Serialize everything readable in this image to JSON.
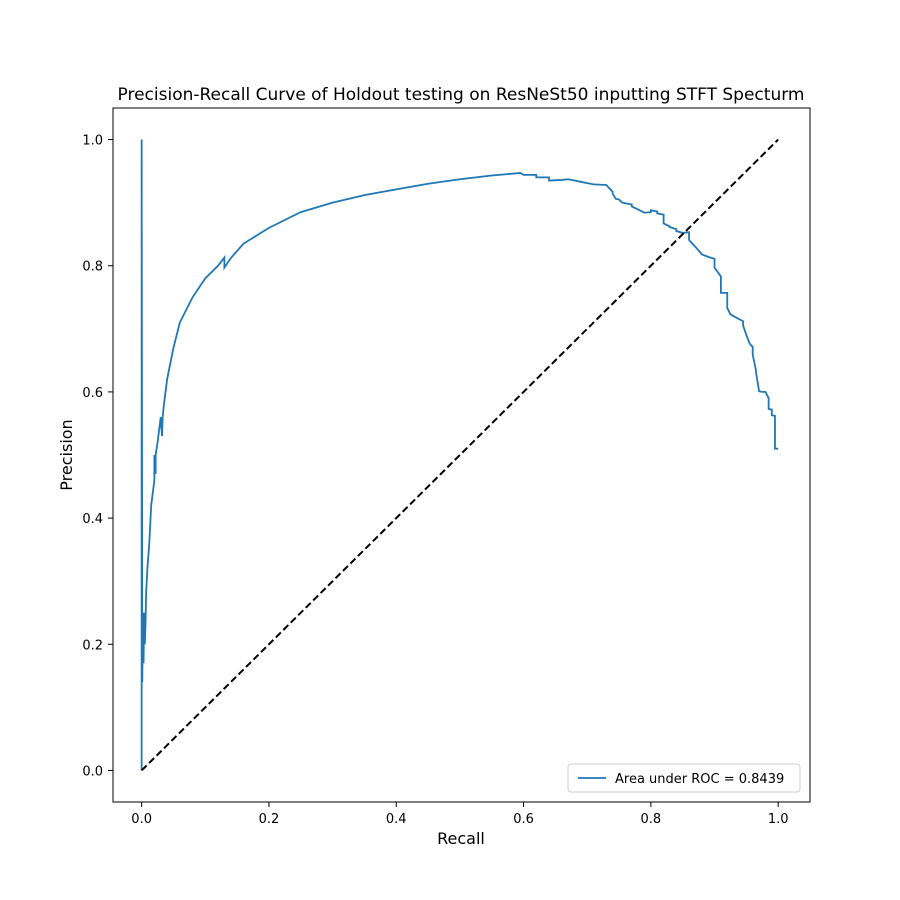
{
  "chart_data": {
    "type": "line",
    "title": "Precision-Recall Curve of Holdout testing on ResNeSt50 inputting STFT Specturm",
    "xlabel": "Recall",
    "ylabel": "Precision",
    "xlim": [
      -0.045,
      1.05
    ],
    "ylim": [
      -0.05,
      1.05
    ],
    "xticks": [
      0.0,
      0.2,
      0.4,
      0.6,
      0.8,
      1.0
    ],
    "xtick_labels": [
      "0.0",
      "0.2",
      "0.4",
      "0.6",
      "0.8",
      "1.0"
    ],
    "yticks": [
      0.0,
      0.2,
      0.4,
      0.6,
      0.8,
      1.0
    ],
    "ytick_labels": [
      "0.0",
      "0.2",
      "0.4",
      "0.6",
      "0.8",
      "1.0"
    ],
    "grid": false,
    "legend_position": "lower-right",
    "series": [
      {
        "name": "Area under ROC = 0.8439",
        "color": "#1f77b4",
        "style": "solid",
        "x": [
          0.0,
          0.0,
          0.001,
          0.002,
          0.003,
          0.004,
          0.005,
          0.006,
          0.007,
          0.009,
          0.012,
          0.015,
          0.02,
          0.02,
          0.022,
          0.022,
          0.025,
          0.03,
          0.032,
          0.033,
          0.035,
          0.04,
          0.05,
          0.06,
          0.08,
          0.1,
          0.12,
          0.13,
          0.13,
          0.14,
          0.16,
          0.2,
          0.25,
          0.3,
          0.35,
          0.4,
          0.45,
          0.5,
          0.55,
          0.595,
          0.6,
          0.62,
          0.62,
          0.64,
          0.64,
          0.66,
          0.67,
          0.68,
          0.69,
          0.7,
          0.71,
          0.73,
          0.74,
          0.74,
          0.745,
          0.75,
          0.755,
          0.76,
          0.77,
          0.77,
          0.79,
          0.8,
          0.8,
          0.81,
          0.81,
          0.82,
          0.82,
          0.83,
          0.83,
          0.84,
          0.84,
          0.85,
          0.86,
          0.86,
          0.865,
          0.87,
          0.875,
          0.88,
          0.89,
          0.9,
          0.9,
          0.91,
          0.91,
          0.92,
          0.92,
          0.925,
          0.93,
          0.945,
          0.945,
          0.95,
          0.955,
          0.96,
          0.96,
          0.965,
          0.965,
          0.97,
          0.975,
          0.98,
          0.985,
          0.985,
          0.99,
          0.99,
          0.995,
          0.995,
          1.0
        ],
        "y": [
          0.0,
          1.0,
          0.14,
          0.25,
          0.17,
          0.25,
          0.2,
          0.23,
          0.28,
          0.32,
          0.36,
          0.42,
          0.46,
          0.5,
          0.47,
          0.5,
          0.52,
          0.56,
          0.53,
          0.56,
          0.58,
          0.62,
          0.67,
          0.71,
          0.75,
          0.78,
          0.8,
          0.813,
          0.797,
          0.812,
          0.835,
          0.86,
          0.885,
          0.9,
          0.912,
          0.921,
          0.93,
          0.937,
          0.943,
          0.947,
          0.944,
          0.944,
          0.94,
          0.94,
          0.935,
          0.936,
          0.937,
          0.935,
          0.933,
          0.931,
          0.929,
          0.928,
          0.917,
          0.914,
          0.906,
          0.905,
          0.9,
          0.899,
          0.897,
          0.894,
          0.884,
          0.885,
          0.888,
          0.886,
          0.883,
          0.881,
          0.867,
          0.862,
          0.861,
          0.858,
          0.855,
          0.852,
          0.853,
          0.841,
          0.835,
          0.83,
          0.824,
          0.818,
          0.814,
          0.811,
          0.797,
          0.783,
          0.757,
          0.757,
          0.733,
          0.723,
          0.72,
          0.712,
          0.705,
          0.69,
          0.677,
          0.671,
          0.659,
          0.635,
          0.632,
          0.601,
          0.6,
          0.6,
          0.59,
          0.573,
          0.572,
          0.563,
          0.562,
          0.51,
          0.51
        ]
      },
      {
        "name": "",
        "color": "#000000",
        "style": "dashed",
        "x": [
          0.0,
          1.0
        ],
        "y": [
          0.0,
          1.0
        ]
      }
    ],
    "legend": [
      {
        "label": "Area under ROC = 0.8439",
        "color": "#1f77b4"
      }
    ]
  }
}
